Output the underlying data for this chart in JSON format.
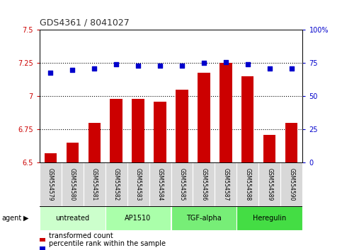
{
  "title": "GDS4361 / 8041027",
  "categories": [
    "GSM554579",
    "GSM554580",
    "GSM554581",
    "GSM554582",
    "GSM554583",
    "GSM554584",
    "GSM554585",
    "GSM554586",
    "GSM554587",
    "GSM554588",
    "GSM554589",
    "GSM554590"
  ],
  "bar_values": [
    6.57,
    6.65,
    6.8,
    6.98,
    6.98,
    6.96,
    7.05,
    7.18,
    7.25,
    7.15,
    6.71,
    6.8
  ],
  "scatter_values": [
    68,
    70,
    71,
    74,
    73,
    73,
    73,
    75,
    76,
    74,
    71,
    71
  ],
  "bar_color": "#cc0000",
  "scatter_color": "#0000cc",
  "ylim_left": [
    6.5,
    7.5
  ],
  "ylim_right": [
    0,
    100
  ],
  "yticks_left": [
    6.5,
    6.75,
    7.0,
    7.25,
    7.5
  ],
  "yticks_right": [
    0,
    25,
    50,
    75,
    100
  ],
  "ytick_labels_left": [
    "6.5",
    "6.75",
    "7",
    "7.25",
    "7.5"
  ],
  "ytick_labels_right": [
    "0",
    "25",
    "50",
    "75",
    "100%"
  ],
  "hlines": [
    6.75,
    7.0,
    7.25
  ],
  "groups": [
    {
      "label": "untreated",
      "start": 0,
      "end": 3,
      "color": "#ccffcc"
    },
    {
      "label": "AP1510",
      "start": 3,
      "end": 6,
      "color": "#aaffaa"
    },
    {
      "label": "TGF-alpha",
      "start": 6,
      "end": 9,
      "color": "#77ee77"
    },
    {
      "label": "Heregulin",
      "start": 9,
      "end": 12,
      "color": "#44dd44"
    }
  ],
  "agent_label": "agent",
  "legend_bar_label": "transformed count",
  "legend_scatter_label": "percentile rank within the sample",
  "title_color": "#333333",
  "left_tick_color": "#cc0000",
  "right_tick_color": "#0000cc",
  "bar_width": 0.55,
  "gray_box_color": "#d8d8d8",
  "fig_width": 4.83,
  "fig_height": 3.54,
  "dpi": 100
}
